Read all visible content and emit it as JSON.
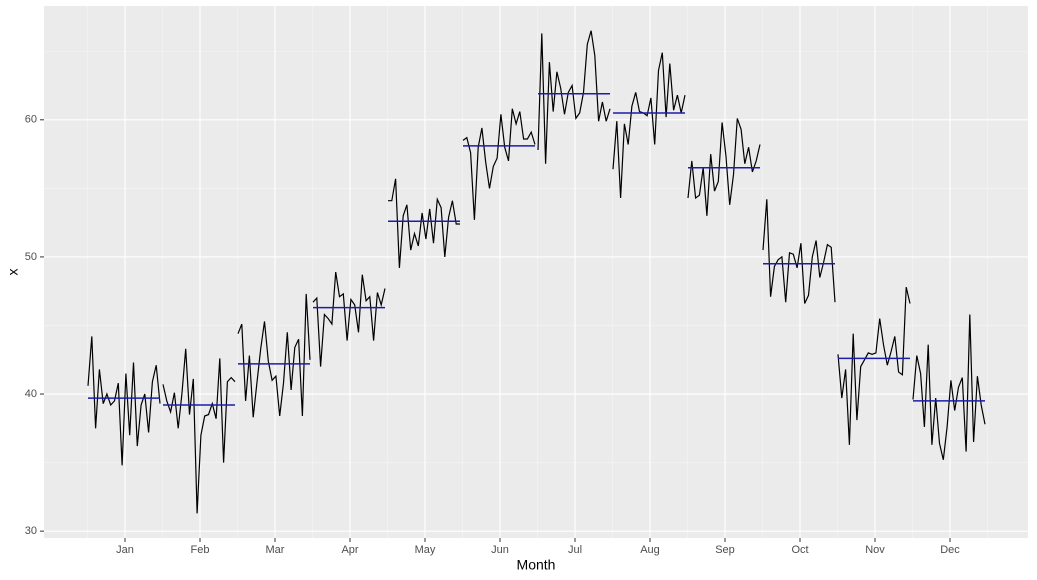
{
  "chart_data": {
    "type": "subseries",
    "x_label": "Month",
    "y_label": "x",
    "categories": [
      "Jan",
      "Feb",
      "Mar",
      "Apr",
      "May",
      "Jun",
      "Jul",
      "Aug",
      "Sep",
      "Oct",
      "Nov",
      "Dec"
    ],
    "values": [
      [
        40.6,
        44.2,
        37.5,
        41.8,
        39.3,
        40.0,
        39.2,
        39.5,
        40.8,
        34.8,
        41.5,
        37.0,
        42.3,
        36.2,
        39.2,
        40.0,
        37.2,
        40.9,
        42.1,
        39.3
      ],
      [
        40.7,
        39.5,
        38.7,
        40.1,
        37.5,
        40.0,
        43.3,
        38.5,
        41.1,
        31.3,
        37.0,
        38.4,
        38.5,
        39.3,
        38.2,
        42.6,
        35.0,
        40.9,
        41.2,
        40.9
      ],
      [
        44.4,
        45.1,
        39.5,
        42.8,
        38.3,
        40.8,
        43.3,
        45.3,
        42.4,
        41.0,
        41.3,
        38.4,
        40.8,
        44.5,
        40.3,
        43.4,
        44.0,
        38.4,
        47.3,
        42.5
      ],
      [
        46.7,
        47.0,
        42.0,
        45.8,
        45.5,
        45.1,
        48.9,
        47.1,
        47.3,
        43.9,
        46.9,
        46.5,
        44.5,
        48.7,
        46.8,
        47.1,
        43.9,
        47.4,
        46.5,
        47.7
      ],
      [
        54.1,
        54.1,
        55.7,
        49.2,
        53.0,
        53.8,
        50.5,
        51.7,
        50.8,
        53.2,
        51.3,
        53.5,
        51.0,
        54.2,
        53.6,
        50.0,
        52.9,
        54.1,
        52.4,
        52.4
      ],
      [
        58.5,
        58.7,
        57.6,
        52.7,
        58.0,
        59.4,
        56.9,
        55.0,
        56.6,
        57.2,
        60.4,
        58.0,
        57.0,
        60.8,
        59.7,
        60.6,
        58.6,
        58.6,
        59.1,
        58.2
      ],
      [
        57.8,
        66.3,
        56.8,
        64.2,
        60.6,
        63.5,
        62.3,
        60.4,
        62.0,
        62.5,
        60.1,
        60.5,
        62.0,
        65.5,
        66.5,
        64.7,
        59.9,
        61.3,
        59.9,
        60.8
      ],
      [
        56.4,
        59.9,
        54.3,
        59.7,
        58.2,
        61.0,
        62.0,
        60.6,
        60.5,
        60.3,
        61.6,
        58.2,
        63.6,
        64.9,
        60.2,
        64.1,
        60.7,
        61.8,
        60.5,
        61.8
      ],
      [
        54.3,
        57.0,
        54.3,
        54.5,
        56.5,
        53.0,
        57.5,
        54.8,
        55.5,
        59.8,
        57.4,
        53.8,
        56.0,
        60.1,
        59.3,
        56.8,
        58.0,
        56.2,
        57.0,
        58.2
      ],
      [
        50.5,
        54.2,
        47.1,
        49.3,
        49.8,
        50.0,
        46.7,
        50.3,
        50.2,
        49.2,
        51.0,
        46.6,
        47.2,
        50.0,
        51.2,
        48.5,
        49.6,
        50.9,
        50.7,
        46.7
      ],
      [
        42.9,
        39.7,
        41.8,
        36.3,
        44.4,
        38.1,
        42.0,
        42.5,
        43.0,
        42.9,
        43.0,
        45.5,
        43.6,
        42.1,
        43.1,
        44.2,
        41.6,
        41.4,
        47.8,
        46.6
      ],
      [
        39.6,
        42.8,
        41.5,
        37.6,
        43.6,
        36.3,
        39.7,
        36.4,
        35.2,
        37.6,
        41.0,
        38.8,
        40.5,
        41.2,
        35.8,
        45.8,
        36.5,
        41.3,
        39.2,
        37.8
      ]
    ],
    "means": [
      39.7,
      39.2,
      42.2,
      46.3,
      52.6,
      58.1,
      61.9,
      60.5,
      56.5,
      49.5,
      42.6,
      39.5
    ],
    "color": "#000000",
    "mean_color": "#1c1caa",
    "ylim": [
      29.5,
      68.3
    ],
    "yticks": [
      30,
      40,
      50,
      60
    ],
    "grid": true
  }
}
